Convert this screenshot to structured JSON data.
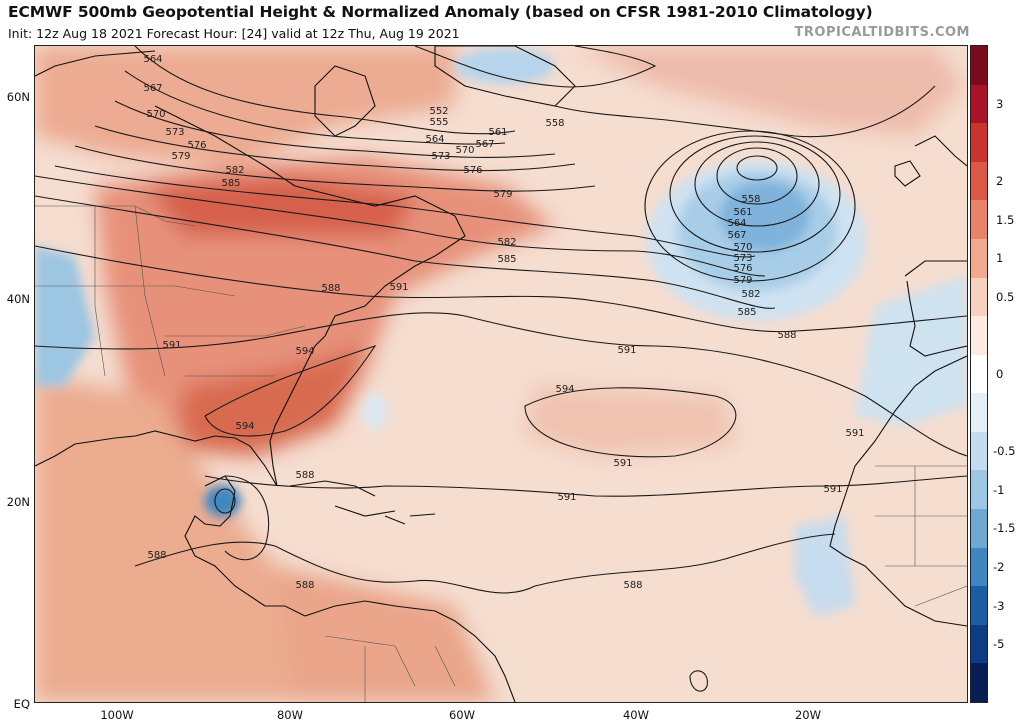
{
  "header": {
    "title": "ECMWF 500mb Geopotential Height & Normalized Anomaly (based on CFSR 1981-2010 Climatology)",
    "subtitle": "Init: 12z Aug 18 2021   Forecast Hour: [24]   valid at 12z Thu, Aug 19 2021",
    "credit": "TROPICALTIDBITS.COM"
  },
  "axes": {
    "lat_labels": [
      "60N",
      "40N",
      "20N",
      "EQ"
    ],
    "lon_labels": [
      "100W",
      "80W",
      "60W",
      "40W",
      "20W"
    ]
  },
  "colorbar": {
    "labels": [
      "3",
      "2",
      "1.5",
      "1",
      "0.5",
      "0",
      "-0.5",
      "-1",
      "-1.5",
      "-2",
      "-3",
      "-5"
    ],
    "colors": [
      "#7a0a1c",
      "#a8142a",
      "#c9362f",
      "#dc5a45",
      "#e8826a",
      "#f1a98f",
      "#f8d0c0",
      "#fcebe3",
      "#ffffff",
      "#e4eff7",
      "#c4dcee",
      "#9ec7e3",
      "#6fa9d3",
      "#3f86c0",
      "#1c5ea6",
      "#0d3c82",
      "#061d55"
    ]
  },
  "contours": {
    "labels": [
      "564",
      "567",
      "570",
      "573",
      "576",
      "579",
      "582",
      "585",
      "552",
      "555",
      "561",
      "558",
      "564",
      "567",
      "570",
      "573",
      "576",
      "579",
      "582",
      "585",
      "588",
      "591",
      "591",
      "594",
      "594",
      "558",
      "561",
      "564",
      "567",
      "570",
      "573",
      "576",
      "579",
      "582",
      "585",
      "588",
      "591",
      "594",
      "591",
      "591",
      "591",
      "591",
      "588",
      "588",
      "588",
      "588"
    ]
  }
}
